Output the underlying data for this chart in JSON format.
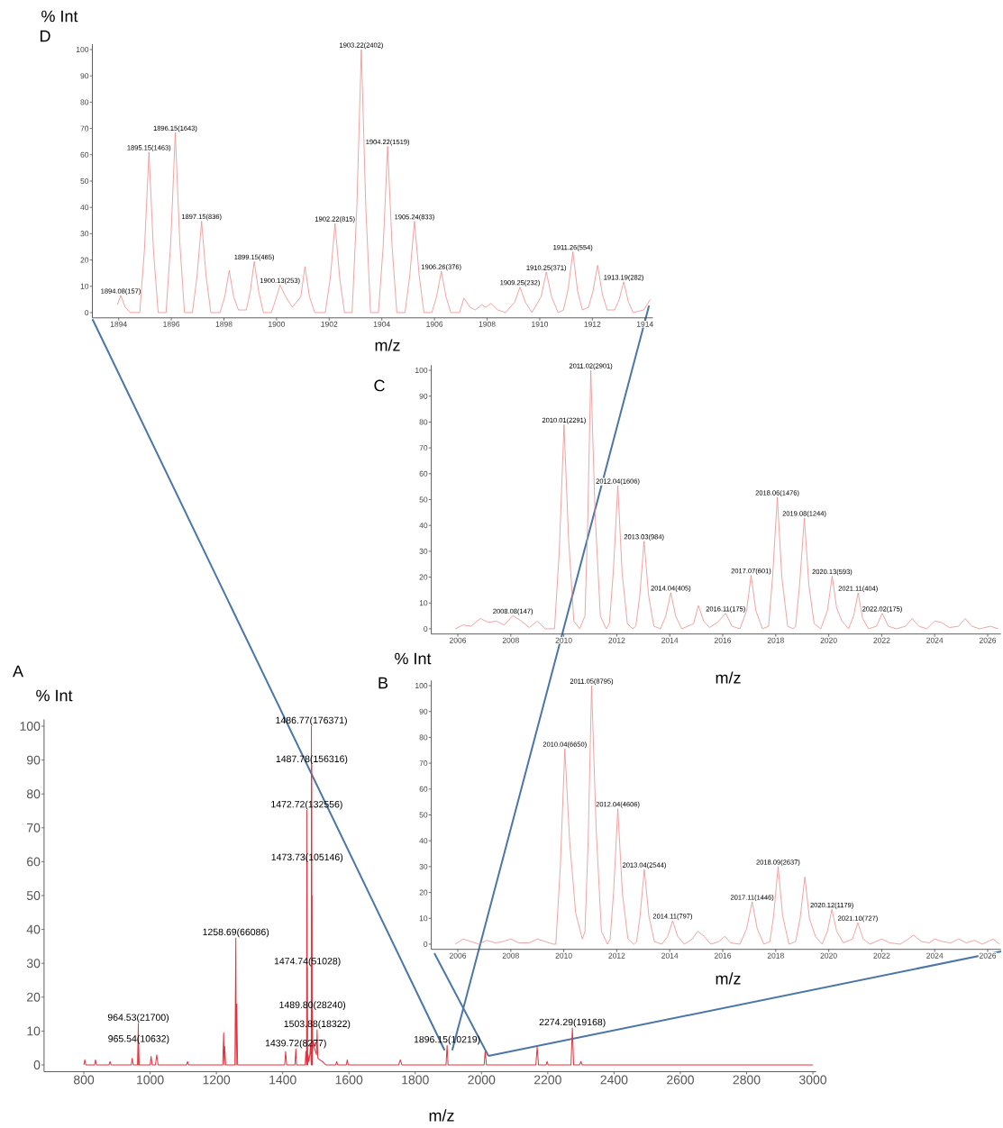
{
  "chart_data": [
    {
      "type": "line",
      "title": "D",
      "ylabel": "% Int",
      "xlabel": "m/z",
      "xlim": [
        1893,
        1914.3
      ],
      "ylim": [
        -2,
        102
      ],
      "xticks": [
        1894,
        1896,
        1898,
        1900,
        1902,
        1904,
        1906,
        1908,
        1910,
        1912,
        1914
      ],
      "yticks": [
        0,
        10,
        20,
        30,
        40,
        50,
        60,
        70,
        80,
        90,
        100
      ],
      "series": [
        {
          "color": "#f08c8c",
          "x": [
            1893.95,
            1894.08,
            1894.25,
            1894.45,
            1894.8,
            1894.98,
            1895.15,
            1895.32,
            1895.5,
            1895.8,
            1895.98,
            1896.15,
            1896.32,
            1896.5,
            1896.8,
            1896.98,
            1897.15,
            1897.32,
            1897.5,
            1897.85,
            1898.03,
            1898.2,
            1898.37,
            1898.55,
            1898.85,
            1899.0,
            1899.15,
            1899.32,
            1899.5,
            1899.8,
            1899.97,
            1900.13,
            1900.35,
            1900.6,
            1900.92,
            1901.08,
            1901.25,
            1901.45,
            1901.85,
            1902.04,
            1902.22,
            1902.4,
            1902.58,
            1902.87,
            1903.05,
            1903.22,
            1903.39,
            1903.57,
            1903.87,
            1904.05,
            1904.22,
            1904.39,
            1904.57,
            1904.88,
            1905.06,
            1905.24,
            1905.42,
            1905.6,
            1905.9,
            1906.08,
            1906.26,
            1906.44,
            1906.62,
            1906.95,
            1907.12,
            1907.35,
            1907.55,
            1907.8,
            1907.95,
            1908.15,
            1908.4,
            1908.7,
            1909.05,
            1909.25,
            1909.45,
            1909.7,
            1910.05,
            1910.25,
            1910.45,
            1910.7,
            1910.9,
            1911.08,
            1911.26,
            1911.44,
            1911.62,
            1911.85,
            1912.02,
            1912.2,
            1912.38,
            1912.56,
            1912.85,
            1913.02,
            1913.19,
            1913.37,
            1913.55,
            1913.95,
            1914.2
          ],
          "values": [
            3,
            6.5,
            2,
            0,
            0,
            24,
            61,
            24,
            0,
            0,
            27,
            68.4,
            27,
            0,
            0,
            14,
            34.8,
            14,
            0,
            0,
            6,
            16,
            6,
            1,
            1,
            8,
            19.4,
            8,
            0,
            0,
            5,
            10.5,
            6,
            2,
            6,
            17.5,
            6,
            0,
            0,
            13,
            33.9,
            13,
            0,
            0,
            40,
            100,
            40,
            0,
            0,
            25,
            63.2,
            25,
            0,
            0,
            14,
            34.7,
            14,
            0,
            0,
            6,
            15.7,
            6,
            0,
            0,
            5.5,
            2,
            1,
            3,
            2,
            3.5,
            1,
            0,
            4,
            9.7,
            4,
            0,
            6,
            15.4,
            6,
            0,
            1,
            9,
            23.1,
            8,
            1,
            2,
            8,
            18,
            7,
            1,
            1,
            5,
            11.7,
            4,
            0,
            1,
            5
          ]
        }
      ],
      "annotations": [
        {
          "text": "1894.08(157)",
          "x": 1894.08,
          "y": 6.5
        },
        {
          "text": "1895.15(1463)",
          "x": 1895.15,
          "y": 61
        },
        {
          "text": "1896.15(1643)",
          "x": 1896.15,
          "y": 68.4
        },
        {
          "text": "1897.15(836)",
          "x": 1897.15,
          "y": 34.8
        },
        {
          "text": "1899.15(465)",
          "x": 1899.15,
          "y": 19.4
        },
        {
          "text": "1900.13(253)",
          "x": 1900.13,
          "y": 10.5
        },
        {
          "text": "1902.22(815)",
          "x": 1902.22,
          "y": 33.9
        },
        {
          "text": "1903.22(2402)",
          "x": 1903.22,
          "y": 100
        },
        {
          "text": "1904.22(1519)",
          "x": 1904.22,
          "y": 63.2
        },
        {
          "text": "1905.24(833)",
          "x": 1905.24,
          "y": 34.7
        },
        {
          "text": "1906.26(376)",
          "x": 1906.26,
          "y": 15.7
        },
        {
          "text": "1909.25(232)",
          "x": 1909.25,
          "y": 9.7
        },
        {
          "text": "1910.25(371)",
          "x": 1910.25,
          "y": 15.4
        },
        {
          "text": "1911.26(554)",
          "x": 1911.26,
          "y": 23.1
        },
        {
          "text": "1913.19(282)",
          "x": 1913.19,
          "y": 11.7
        }
      ]
    },
    {
      "type": "line",
      "title": "C",
      "xlabel": "m/z",
      "xlim": [
        2005,
        2026.5
      ],
      "ylim": [
        -2,
        102
      ],
      "xticks": [
        2006,
        2008,
        2010,
        2012,
        2014,
        2016,
        2018,
        2020,
        2022,
        2024,
        2026
      ],
      "yticks": [
        0,
        10,
        20,
        30,
        40,
        50,
        60,
        70,
        80,
        90,
        100
      ],
      "series": [
        {
          "color": "#f08c8c",
          "x": [
            2005.9,
            2006.2,
            2006.5,
            2006.85,
            2007.15,
            2007.45,
            2007.75,
            2008.08,
            2008.4,
            2008.7,
            2009.0,
            2009.3,
            2009.65,
            2009.83,
            2010.01,
            2010.18,
            2010.38,
            2010.6,
            2010.8,
            2010.9,
            2011.02,
            2011.18,
            2011.38,
            2011.6,
            2011.72,
            2011.87,
            2012.04,
            2012.2,
            2012.4,
            2012.6,
            2012.72,
            2012.87,
            2013.03,
            2013.2,
            2013.4,
            2013.65,
            2013.85,
            2014.04,
            2014.22,
            2014.45,
            2014.9,
            2015.08,
            2015.28,
            2015.5,
            2015.8,
            2016.11,
            2016.35,
            2016.65,
            2016.9,
            2017.07,
            2017.25,
            2017.5,
            2017.73,
            2017.88,
            2018.06,
            2018.23,
            2018.45,
            2018.65,
            2018.75,
            2018.9,
            2019.08,
            2019.25,
            2019.45,
            2019.7,
            2019.95,
            2020.13,
            2020.3,
            2020.5,
            2020.75,
            2020.94,
            2021.11,
            2021.28,
            2021.5,
            2021.8,
            2022.02,
            2022.25,
            2022.55,
            2022.9,
            2023.15,
            2023.4,
            2023.7,
            2024.0,
            2024.25,
            2024.55,
            2024.9,
            2025.15,
            2025.4,
            2025.7,
            2026.1,
            2026.4
          ],
          "values": [
            0,
            1.5,
            1,
            4,
            2.5,
            3,
            1.5,
            5.1,
            3,
            0.5,
            3,
            0,
            0,
            30,
            79,
            35,
            3,
            0,
            5,
            40,
            100,
            45,
            5,
            0,
            2,
            22,
            55.4,
            22,
            2,
            0,
            1,
            13,
            33.9,
            13,
            1,
            0,
            5,
            14,
            5,
            0,
            2,
            9,
            3,
            0.5,
            2.5,
            6,
            1,
            0,
            7,
            20.7,
            7,
            0,
            1,
            20,
            50.9,
            20,
            1,
            0,
            1,
            17,
            42.9,
            17,
            2,
            0,
            7,
            20.4,
            8,
            3,
            0,
            5,
            13.9,
            4,
            0,
            1,
            6,
            1,
            0,
            1,
            4,
            1,
            0,
            3,
            2.5,
            0.5,
            1,
            4,
            1,
            0,
            1,
            0
          ]
        }
      ],
      "annotations": [
        {
          "text": "2008.08(147)",
          "x": 2008.08,
          "y": 5.1
        },
        {
          "text": "2010.01(2291)",
          "x": 2010.01,
          "y": 79
        },
        {
          "text": "2011.02(2901)",
          "x": 2011.02,
          "y": 100
        },
        {
          "text": "2012.04(1606)",
          "x": 2012.04,
          "y": 55.4
        },
        {
          "text": "2013.03(984)",
          "x": 2013.03,
          "y": 33.9
        },
        {
          "text": "2014.04(405)",
          "x": 2014.04,
          "y": 14
        },
        {
          "text": "2016.11(175)",
          "x": 2016.11,
          "y": 6
        },
        {
          "text": "2017.07(601)",
          "x": 2017.07,
          "y": 20.7
        },
        {
          "text": "2018.06(1476)",
          "x": 2018.06,
          "y": 50.9
        },
        {
          "text": "2019.08(1244)",
          "x": 2019.08,
          "y": 42.9
        },
        {
          "text": "2020.13(593)",
          "x": 2020.13,
          "y": 20.4
        },
        {
          "text": "2021.11(404)",
          "x": 2021.11,
          "y": 13.9
        },
        {
          "text": "2022.02(175)",
          "x": 2022.02,
          "y": 6
        }
      ]
    },
    {
      "type": "line",
      "title": "B",
      "ylabel": "% Int",
      "xlabel": "m/z",
      "xlim": [
        2005,
        2026.5
      ],
      "ylim": [
        -2,
        102
      ],
      "xticks": [
        2006,
        2008,
        2010,
        2012,
        2014,
        2016,
        2018,
        2020,
        2022,
        2024,
        2026
      ],
      "yticks": [
        0,
        10,
        20,
        30,
        40,
        50,
        60,
        70,
        80,
        90,
        100
      ],
      "series": [
        {
          "color": "#f08c8c",
          "x": [
            2005.9,
            2006.2,
            2006.5,
            2006.8,
            2007.1,
            2007.4,
            2007.7,
            2008.0,
            2008.3,
            2008.7,
            2009.0,
            2009.3,
            2009.6,
            2009.7,
            2009.87,
            2010.04,
            2010.22,
            2010.45,
            2010.7,
            2010.8,
            2010.92,
            2011.05,
            2011.22,
            2011.42,
            2011.65,
            2011.75,
            2011.88,
            2012.04,
            2012.21,
            2012.42,
            2012.65,
            2012.75,
            2012.88,
            2013.04,
            2013.21,
            2013.42,
            2013.7,
            2013.92,
            2014.11,
            2014.3,
            2014.55,
            2014.85,
            2015.05,
            2015.3,
            2015.55,
            2015.85,
            2016.08,
            2016.3,
            2016.65,
            2016.9,
            2017.11,
            2017.3,
            2017.55,
            2017.78,
            2017.92,
            2018.09,
            2018.26,
            2018.5,
            2018.75,
            2018.92,
            2019.1,
            2019.27,
            2019.5,
            2019.75,
            2019.95,
            2020.12,
            2020.3,
            2020.55,
            2020.9,
            2021.1,
            2021.3,
            2021.55,
            2022.0,
            2022.3,
            2022.7,
            2023.0,
            2023.2,
            2023.5,
            2023.8,
            2024.0,
            2024.3,
            2024.6,
            2024.9,
            2025.2,
            2025.5,
            2025.8,
            2026.2,
            2026.45
          ],
          "values": [
            0,
            2,
            1,
            0,
            1.5,
            0.5,
            1,
            2,
            0.5,
            0.5,
            2,
            1,
            0,
            0,
            30,
            75.6,
            40,
            12,
            2,
            5,
            40,
            100,
            45,
            5,
            0,
            2,
            20,
            52.4,
            20,
            2,
            0,
            1,
            11,
            28.9,
            11,
            1,
            0,
            3,
            9.1,
            3,
            0,
            2,
            5,
            3,
            0,
            1,
            3,
            0.5,
            0,
            6,
            16.4,
            6,
            0,
            1,
            11,
            30,
            11,
            0,
            1,
            10,
            26,
            10,
            3,
            0,
            5,
            13.4,
            5,
            0.5,
            2,
            8.3,
            2,
            0,
            2,
            0.5,
            0,
            2,
            3.5,
            1,
            0.5,
            2,
            1,
            0.5,
            2,
            0.5,
            1.5,
            0,
            2,
            0
          ]
        }
      ],
      "annotations": [
        {
          "text": "2010.04(6650)",
          "x": 2010.04,
          "y": 75.6
        },
        {
          "text": "2011.05(8795)",
          "x": 2011.05,
          "y": 100
        },
        {
          "text": "2012.04(4606)",
          "x": 2012.04,
          "y": 52.4
        },
        {
          "text": "2013.04(2544)",
          "x": 2013.04,
          "y": 28.9
        },
        {
          "text": "2014.11(797)",
          "x": 2014.11,
          "y": 9.1
        },
        {
          "text": "2017.11(1446)",
          "x": 2017.11,
          "y": 16.4
        },
        {
          "text": "2018.09(2637)",
          "x": 2018.09,
          "y": 30
        },
        {
          "text": "2020.12(1179)",
          "x": 2020.12,
          "y": 13.4
        },
        {
          "text": "2021.10(727)",
          "x": 2021.1,
          "y": 8.3
        }
      ]
    },
    {
      "type": "line",
      "title": "A",
      "ylabel": "% Int",
      "xlabel": "m/z",
      "xlim": [
        680,
        3010
      ],
      "ylim": [
        -2,
        102
      ],
      "xticks": [
        800,
        1000,
        1200,
        1400,
        1600,
        1800,
        2000,
        2200,
        2400,
        2600,
        2800,
        3000
      ],
      "yticks": [
        0,
        10,
        20,
        30,
        40,
        50,
        60,
        70,
        80,
        90,
        100
      ],
      "series": [
        {
          "color": "#e8313a",
          "x": [
            800,
            803,
            806,
            832,
            835,
            838,
            876,
            879,
            882,
            943,
            946,
            949,
            962,
            964.53,
            965.0,
            965.54,
            967,
            1000,
            1003,
            1006,
            1016,
            1020,
            1024,
            1110,
            1113,
            1116,
            1219,
            1222,
            1223.5,
            1225,
            1228,
            1256,
            1258.69,
            1260,
            1261.5,
            1264,
            1406,
            1409,
            1412,
            1437,
            1439.72,
            1442,
            1468,
            1470,
            1472.2,
            1472.72,
            1473.2,
            1473.73,
            1474.2,
            1474.74,
            1475.5,
            1477,
            1479,
            1482,
            1484,
            1486.2,
            1486.77,
            1487.25,
            1487.78,
            1488.25,
            1488.79,
            1489.3,
            1489.8,
            1490.5,
            1493,
            1496,
            1499,
            1502,
            1503.88,
            1506,
            1512,
            1520,
            1530,
            1560,
            1563,
            1566,
            1592,
            1595,
            1598,
            1750,
            1755,
            1760,
            1893,
            1896.15,
            1899,
            2008,
            2011,
            2015,
            2164,
            2168,
            2172,
            2195,
            2198,
            2201,
            2270,
            2274.29,
            2278,
            2296,
            2300,
            2304,
            3000
          ],
          "values": [
            0,
            1.5,
            0,
            0,
            1.5,
            0,
            0,
            1,
            0,
            0,
            2,
            0,
            0,
            12.3,
            0,
            6,
            0,
            0,
            2.5,
            0,
            0,
            3,
            0,
            0,
            1,
            0,
            0,
            9.5,
            0,
            5.5,
            0,
            0,
            37.5,
            0,
            18,
            0,
            0,
            4,
            0,
            0,
            4.7,
            0,
            0,
            4,
            0,
            75.2,
            0,
            59.6,
            0,
            28.9,
            0,
            3,
            1,
            3,
            6,
            0,
            100,
            0,
            88.6,
            0,
            50,
            0,
            16,
            4,
            7,
            5,
            4,
            3,
            10.4,
            2,
            1.5,
            1,
            0,
            0,
            1,
            0,
            0,
            1.5,
            0,
            0,
            1.5,
            0,
            0,
            5.8,
            0,
            0,
            4,
            0,
            0,
            5.3,
            0,
            0,
            1,
            0,
            0,
            10.9,
            0,
            0,
            1,
            0,
            0
          ]
        }
      ],
      "annotations": [
        {
          "text": "964.53(21700)",
          "x": 964.53,
          "y": 12.3
        },
        {
          "text": "965.54(10632)",
          "x": 965.54,
          "y": 6
        },
        {
          "text": "1258.69(66086)",
          "x": 1258.69,
          "y": 37.5
        },
        {
          "text": "1439.72(8277)",
          "x": 1439.72,
          "y": 4.7
        },
        {
          "text": "1472.72(132556)",
          "x": 1472.72,
          "y": 75.2
        },
        {
          "text": "1473.73(105146)",
          "x": 1473.73,
          "y": 59.6
        },
        {
          "text": "1474.74(51028)",
          "x": 1474.74,
          "y": 28.9
        },
        {
          "text": "1486.77(176371)",
          "x": 1486.77,
          "y": 100
        },
        {
          "text": "1487.78(156316)",
          "x": 1487.78,
          "y": 88.6
        },
        {
          "text": "1489.80(28240)",
          "x": 1489.8,
          "y": 16
        },
        {
          "text": "1503.88(18322)",
          "x": 1503.88,
          "y": 10.4
        },
        {
          "text": "1896.15(10219)",
          "x": 1896.15,
          "y": 5.8
        },
        {
          "text": "2274.29(19168)",
          "x": 2274.29,
          "y": 10.9
        }
      ]
    }
  ]
}
